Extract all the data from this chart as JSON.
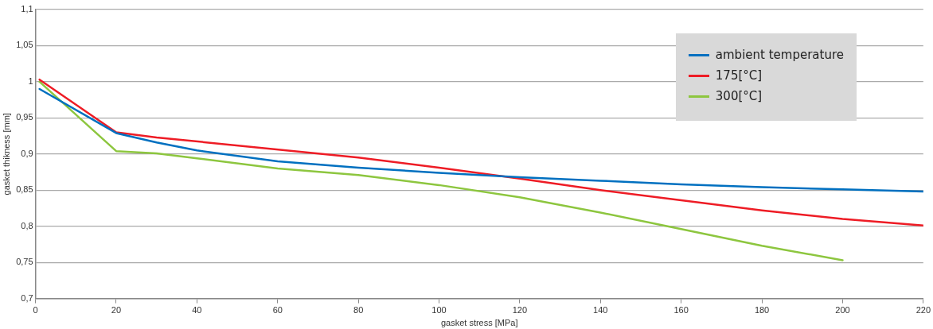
{
  "chart_data": {
    "type": "line",
    "xlabel": "gasket stress [MPa]",
    "ylabel": "gasket thikness [mm]",
    "xlim": [
      0,
      220
    ],
    "xticks": [
      0,
      20,
      40,
      60,
      80,
      100,
      120,
      140,
      160,
      180,
      200,
      220
    ],
    "ylim": [
      0.7,
      1.1
    ],
    "yticks": [
      {
        "value": 0.7,
        "label": "0,7"
      },
      {
        "value": 0.75,
        "label": "0,75"
      },
      {
        "value": 0.8,
        "label": "0,8"
      },
      {
        "value": 0.85,
        "label": "0,85"
      },
      {
        "value": 0.9,
        "label": "0,9"
      },
      {
        "value": 0.95,
        "label": "0,95"
      },
      1,
      {
        "value": 1.05,
        "label": "1,05"
      },
      {
        "value": 1.1,
        "label": "1,1"
      }
    ],
    "grid": "y",
    "legend": "top right",
    "marker": "none",
    "series": [
      {
        "name": "ambient temperature",
        "color": "#0070c0",
        "x": [
          1,
          20,
          30,
          40,
          60,
          80,
          100,
          120,
          140,
          160,
          180,
          200,
          220
        ],
        "values": [
          0.99,
          0.929,
          0.916,
          0.905,
          0.89,
          0.881,
          0.874,
          0.868,
          0.863,
          0.858,
          0.854,
          0.851,
          0.848
        ]
      },
      {
        "name": "175[°C]",
        "color": "#ee1c25",
        "x": [
          1,
          20,
          30,
          80,
          100,
          120,
          140,
          160,
          180,
          200,
          220
        ],
        "values": [
          1.003,
          0.93,
          0.923,
          0.895,
          0.881,
          0.866,
          0.85,
          0.836,
          0.822,
          0.81,
          0.801
        ]
      },
      {
        "name": "300[°C]",
        "color": "#8dc63f",
        "x": [
          1,
          20,
          30,
          40,
          60,
          80,
          100,
          120,
          140,
          160,
          180,
          200
        ],
        "values": [
          1.0,
          0.904,
          0.901,
          0.894,
          0.88,
          0.871,
          0.857,
          0.84,
          0.819,
          0.796,
          0.773,
          0.753
        ]
      }
    ]
  }
}
